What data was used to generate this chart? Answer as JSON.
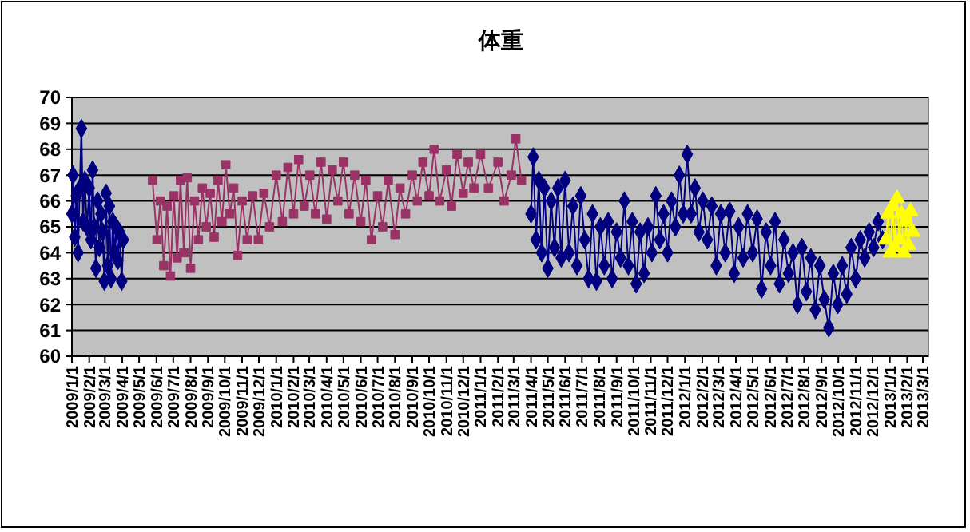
{
  "chart_data": {
    "type": "line",
    "title": "体重",
    "ylim": [
      60,
      70
    ],
    "yticks": [
      60,
      61,
      62,
      63,
      64,
      65,
      66,
      67,
      68,
      69,
      70
    ],
    "grid": "y",
    "xlim": [
      "2009-01-01",
      "2013-03-11"
    ],
    "xticks": [
      {
        "value": "2009-01-01",
        "label": "2009/1/1"
      },
      {
        "value": "2009-02-01",
        "label": "2009/2/1"
      },
      {
        "value": "2009-03-01",
        "label": "2009/3/1"
      },
      {
        "value": "2009-04-01",
        "label": "2009/4/1"
      },
      {
        "value": "2009-05-01",
        "label": "2009/5/1"
      },
      {
        "value": "2009-06-01",
        "label": "2009/6/1"
      },
      {
        "value": "2009-07-01",
        "label": "2009/7/1"
      },
      {
        "value": "2009-08-01",
        "label": "2009/8/1"
      },
      {
        "value": "2009-09-01",
        "label": "2009/9/1"
      },
      {
        "value": "2009-10-01",
        "label": "2009/10/1"
      },
      {
        "value": "2009-11-01",
        "label": "2009/11/1"
      },
      {
        "value": "2009-12-01",
        "label": "2009/12/1"
      },
      {
        "value": "2010-01-01",
        "label": "2010/1/1"
      },
      {
        "value": "2010-02-01",
        "label": "2010/2/1"
      },
      {
        "value": "2010-03-01",
        "label": "2010/3/1"
      },
      {
        "value": "2010-04-01",
        "label": "2010/4/1"
      },
      {
        "value": "2010-05-01",
        "label": "2010/5/1"
      },
      {
        "value": "2010-06-01",
        "label": "2010/6/1"
      },
      {
        "value": "2010-07-01",
        "label": "2010/7/1"
      },
      {
        "value": "2010-08-01",
        "label": "2010/8/1"
      },
      {
        "value": "2010-09-01",
        "label": "2010/9/1"
      },
      {
        "value": "2010-10-01",
        "label": "2010/10/1"
      },
      {
        "value": "2010-11-01",
        "label": "2010/11/1"
      },
      {
        "value": "2010-12-01",
        "label": "2010/12/1"
      },
      {
        "value": "2011-01-01",
        "label": "2011/1/1"
      },
      {
        "value": "2011-02-01",
        "label": "2011/2/1"
      },
      {
        "value": "2011-03-01",
        "label": "2011/3/1"
      },
      {
        "value": "2011-04-01",
        "label": "2011/4/1"
      },
      {
        "value": "2011-05-01",
        "label": "2011/5/1"
      },
      {
        "value": "2011-06-01",
        "label": "2011/6/1"
      },
      {
        "value": "2011-07-01",
        "label": "2011/7/1"
      },
      {
        "value": "2011-08-01",
        "label": "2011/8/1"
      },
      {
        "value": "2011-09-01",
        "label": "2011/9/1"
      },
      {
        "value": "2011-10-01",
        "label": "2011/10/1"
      },
      {
        "value": "2011-11-01",
        "label": "2011/11/1"
      },
      {
        "value": "2011-12-01",
        "label": "2011/12/1"
      },
      {
        "value": "2012-01-01",
        "label": "2012/1/1"
      },
      {
        "value": "2012-02-01",
        "label": "2012/2/1"
      },
      {
        "value": "2012-03-01",
        "label": "2012/3/1"
      },
      {
        "value": "2012-04-01",
        "label": "2012/4/1"
      },
      {
        "value": "2012-05-01",
        "label": "2012/5/1"
      },
      {
        "value": "2012-06-01",
        "label": "2012/6/1"
      },
      {
        "value": "2012-07-01",
        "label": "2012/7/1"
      },
      {
        "value": "2012-08-01",
        "label": "2012/8/1"
      },
      {
        "value": "2012-09-01",
        "label": "2012/9/1"
      },
      {
        "value": "2012-10-01",
        "label": "2012/10/1"
      },
      {
        "value": "2012-11-01",
        "label": "2012/11/1"
      },
      {
        "value": "2012-12-01",
        "label": "2012/12/1"
      },
      {
        "value": "2013-01-01",
        "label": "2013/1/1"
      },
      {
        "value": "2013-02-01",
        "label": "2013/2/1"
      },
      {
        "value": "2013-03-01",
        "label": "2013/3/1"
      }
    ],
    "series": [
      {
        "color": "#000080",
        "marker": "diamond",
        "x": [
          "2009-01-01",
          "2009-01-03",
          "2009-01-06",
          "2009-01-09",
          "2009-01-12",
          "2009-01-15",
          "2009-01-18",
          "2009-01-21",
          "2009-01-24",
          "2009-01-28",
          "2009-02-01",
          "2009-02-04",
          "2009-02-07",
          "2009-02-10",
          "2009-02-13",
          "2009-02-16",
          "2009-02-19",
          "2009-02-22",
          "2009-02-25",
          "2009-02-28",
          "2009-03-03",
          "2009-03-06",
          "2009-03-09",
          "2009-03-12",
          "2009-03-15",
          "2009-03-18",
          "2009-03-21",
          "2009-03-24",
          "2009-03-27",
          "2009-03-31",
          "2009-04-03"
        ],
        "values": [
          65.5,
          67.0,
          64.6,
          66.2,
          64.0,
          66.5,
          68.8,
          65.2,
          66.8,
          65.0,
          66.5,
          64.5,
          67.2,
          65.0,
          63.4,
          66.0,
          64.2,
          65.5,
          64.8,
          62.9,
          66.3,
          63.5,
          65.8,
          63.0,
          65.2,
          64.0,
          65.0,
          63.7,
          64.8,
          62.9,
          64.5
        ]
      },
      {
        "color": "#993366",
        "marker": "square",
        "x": [
          "2009-05-25",
          "2009-06-02",
          "2009-06-08",
          "2009-06-14",
          "2009-06-20",
          "2009-06-26",
          "2009-07-02",
          "2009-07-08",
          "2009-07-14",
          "2009-07-20",
          "2009-07-26",
          "2009-08-01",
          "2009-08-08",
          "2009-08-15",
          "2009-08-22",
          "2009-08-29",
          "2009-09-05",
          "2009-09-12",
          "2009-09-19",
          "2009-09-26",
          "2009-10-03",
          "2009-10-10",
          "2009-10-17",
          "2009-10-24",
          "2009-11-01",
          "2009-11-10",
          "2009-11-20",
          "2009-11-30",
          "2009-12-10",
          "2009-12-20",
          "2010-01-01",
          "2010-01-12",
          "2010-01-22",
          "2010-02-01",
          "2010-02-10",
          "2010-02-20",
          "2010-03-02",
          "2010-03-12",
          "2010-03-22",
          "2010-04-01",
          "2010-04-11",
          "2010-04-21",
          "2010-05-01",
          "2010-05-11",
          "2010-05-21",
          "2010-06-01",
          "2010-06-10",
          "2010-06-20",
          "2010-07-01",
          "2010-07-10",
          "2010-07-20",
          "2010-08-01",
          "2010-08-10",
          "2010-08-20",
          "2010-09-01",
          "2010-09-10",
          "2010-09-20",
          "2010-10-01",
          "2010-10-10",
          "2010-10-20",
          "2010-11-01",
          "2010-11-10",
          "2010-11-20",
          "2010-12-01",
          "2010-12-10",
          "2010-12-20",
          "2011-01-01",
          "2011-01-15",
          "2011-02-01",
          "2011-02-12",
          "2011-02-25",
          "2011-03-05",
          "2011-03-15"
        ],
        "values": [
          66.8,
          64.5,
          66.0,
          63.5,
          65.8,
          63.1,
          66.2,
          63.8,
          66.8,
          64.0,
          66.9,
          63.4,
          66.0,
          64.5,
          66.5,
          65.0,
          66.3,
          64.6,
          66.8,
          65.2,
          67.4,
          65.5,
          66.5,
          63.9,
          66.0,
          64.5,
          66.2,
          64.5,
          66.3,
          65.0,
          67.0,
          65.2,
          67.3,
          65.5,
          67.6,
          65.8,
          67.0,
          65.5,
          67.5,
          65.3,
          67.2,
          66.0,
          67.5,
          65.5,
          67.0,
          65.2,
          66.8,
          64.5,
          66.2,
          65.0,
          66.8,
          64.7,
          66.5,
          65.5,
          67.0,
          66.0,
          67.5,
          66.2,
          68.0,
          66.0,
          67.2,
          65.8,
          67.8,
          66.3,
          67.5,
          66.5,
          67.8,
          66.5,
          67.5,
          66.0,
          67.0,
          68.4,
          66.8
        ]
      },
      {
        "color": "#000080",
        "marker": "diamond",
        "x": [
          "2011-04-01",
          "2011-04-05",
          "2011-04-10",
          "2011-04-15",
          "2011-04-20",
          "2011-04-25",
          "2011-05-01",
          "2011-05-07",
          "2011-05-13",
          "2011-05-19",
          "2011-05-25",
          "2011-06-01",
          "2011-06-08",
          "2011-06-15",
          "2011-06-22",
          "2011-06-29",
          "2011-07-06",
          "2011-07-13",
          "2011-07-20",
          "2011-07-27",
          "2011-08-03",
          "2011-08-10",
          "2011-08-17",
          "2011-08-24",
          "2011-09-01",
          "2011-09-08",
          "2011-09-15",
          "2011-09-22",
          "2011-09-29",
          "2011-10-06",
          "2011-10-13",
          "2011-10-20",
          "2011-10-27",
          "2011-11-03",
          "2011-11-10",
          "2011-11-17",
          "2011-11-24",
          "2011-12-01",
          "2011-12-08",
          "2011-12-15",
          "2011-12-22",
          "2011-12-29",
          "2012-01-05",
          "2012-01-12",
          "2012-01-19",
          "2012-01-26",
          "2012-02-02",
          "2012-02-10",
          "2012-02-18",
          "2012-02-26",
          "2012-03-05",
          "2012-03-13",
          "2012-03-21",
          "2012-03-29",
          "2012-04-06",
          "2012-04-14",
          "2012-04-22",
          "2012-05-01",
          "2012-05-09",
          "2012-05-17",
          "2012-05-25",
          "2012-06-02",
          "2012-06-10",
          "2012-06-18",
          "2012-06-26",
          "2012-07-04",
          "2012-07-12",
          "2012-07-20",
          "2012-07-28",
          "2012-08-05",
          "2012-08-13",
          "2012-08-21",
          "2012-08-29",
          "2012-09-06",
          "2012-09-14",
          "2012-09-22",
          "2012-09-30",
          "2012-10-08",
          "2012-10-16",
          "2012-10-24",
          "2012-11-01",
          "2012-11-09",
          "2012-11-17",
          "2012-11-25",
          "2012-12-03",
          "2012-12-11",
          "2012-12-19"
        ],
        "values": [
          65.5,
          67.7,
          64.5,
          66.8,
          64.0,
          66.5,
          63.4,
          66.0,
          64.2,
          66.5,
          63.8,
          66.8,
          64.0,
          65.8,
          63.5,
          66.2,
          64.5,
          63.0,
          65.5,
          62.9,
          65.0,
          63.5,
          65.2,
          63.0,
          64.8,
          63.8,
          66.0,
          63.5,
          65.2,
          62.8,
          64.8,
          63.2,
          65.0,
          64.0,
          66.2,
          64.5,
          65.5,
          64.0,
          66.0,
          65.0,
          67.0,
          65.5,
          67.8,
          65.5,
          66.5,
          64.8,
          66.0,
          64.5,
          65.8,
          63.5,
          65.5,
          64.0,
          65.6,
          63.2,
          65.0,
          63.8,
          65.5,
          64.0,
          65.3,
          62.6,
          64.8,
          63.5,
          65.2,
          62.8,
          64.5,
          63.2,
          64.0,
          62.0,
          64.2,
          62.5,
          63.8,
          61.8,
          63.5,
          62.2,
          61.1,
          63.2,
          62.0,
          63.5,
          62.4,
          64.2,
          63.0,
          64.5,
          63.8,
          64.8,
          64.2,
          65.2,
          64.5
        ]
      },
      {
        "color": "#ffff00",
        "marker": "triangle",
        "x": [
          "2012-12-25",
          "2012-12-29",
          "2013-01-02",
          "2013-01-06",
          "2013-01-10",
          "2013-01-14",
          "2013-01-18",
          "2013-01-22",
          "2013-01-26",
          "2013-01-30",
          "2013-02-03",
          "2013-02-07",
          "2013-02-11"
        ],
        "values": [
          64.5,
          65.5,
          64.0,
          65.8,
          64.2,
          66.1,
          64.5,
          65.5,
          64.0,
          65.2,
          64.3,
          65.6,
          64.8
        ]
      }
    ]
  }
}
